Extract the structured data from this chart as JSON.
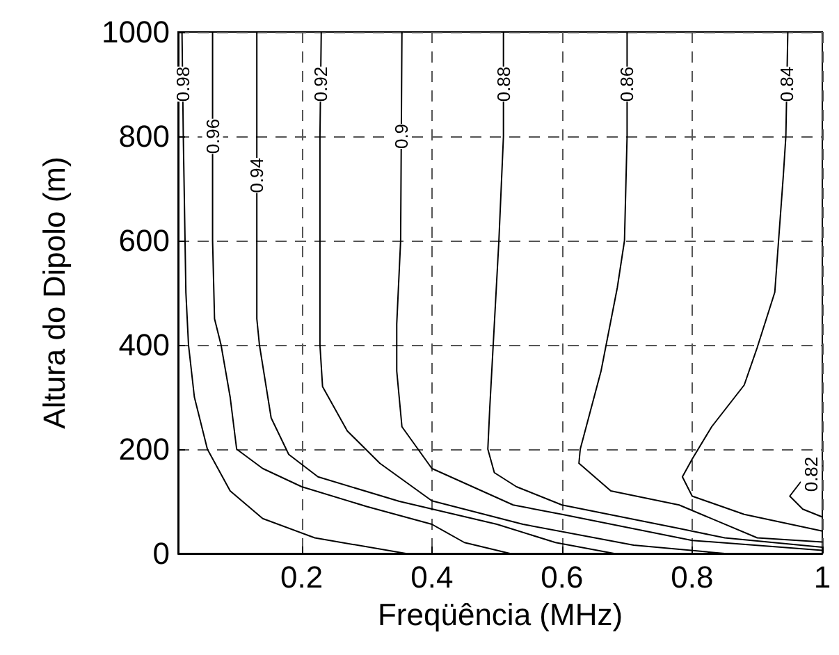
{
  "chart_data": {
    "type": "line",
    "xlabel": "Freqüência (MHz)",
    "ylabel": "Altura do Dipolo (m)",
    "xlim": [
      0.01,
      1
    ],
    "ylim": [
      0,
      1000
    ],
    "xticks": [
      0.2,
      0.4,
      0.6,
      0.8,
      1
    ],
    "yticks": [
      0,
      200,
      400,
      600,
      800,
      1000
    ],
    "grid": true,
    "legend": false,
    "marker": "none",
    "line_style": "solid",
    "series": [
      {
        "name": "0.98",
        "color": "#000000",
        "x": [
          0.016,
          0.018,
          0.022,
          0.026,
          0.035,
          0.055,
          0.09,
          0.14,
          0.22,
          0.36
        ],
        "values": [
          1000,
          800,
          500,
          400,
          300,
          200,
          120,
          67,
          30,
          0
        ]
      },
      {
        "name": "0.96",
        "color": "#000000",
        "x": [
          0.063,
          0.063,
          0.066,
          0.076,
          0.09,
          0.1,
          0.14,
          0.2,
          0.3,
          0.4,
          0.45,
          0.52
        ],
        "values": [
          1000,
          600,
          450,
          400,
          300,
          200,
          163,
          128,
          90,
          56,
          21,
          0
        ]
      },
      {
        "name": "0.94",
        "color": "#000000",
        "x": [
          0.131,
          0.131,
          0.135,
          0.153,
          0.18,
          0.225,
          0.35,
          0.5,
          0.59,
          0.68
        ],
        "values": [
          1000,
          450,
          400,
          260,
          190,
          147,
          100,
          56,
          21,
          0
        ]
      },
      {
        "name": "0.92",
        "color": "#000000",
        "x": [
          0.23,
          0.228,
          0.228,
          0.232,
          0.27,
          0.32,
          0.4,
          0.54,
          0.71,
          0.85
        ],
        "values": [
          1000,
          800,
          400,
          320,
          235,
          173,
          101,
          56,
          16,
          0
        ]
      },
      {
        "name": "0.9",
        "color": "#000000",
        "x": [
          0.354,
          0.352,
          0.346,
          0.346,
          0.354,
          0.4,
          0.525,
          0.6,
          0.8,
          1
        ],
        "values": [
          1000,
          600,
          440,
          350,
          243,
          163,
          93,
          75,
          25,
          6
        ]
      },
      {
        "name": "0.88",
        "color": "#000000",
        "x": [
          0.51,
          0.51,
          0.503,
          0.496,
          0.489,
          0.486,
          0.496,
          0.53,
          0.6,
          0.78,
          0.85,
          1
        ],
        "values": [
          1000,
          800,
          600,
          440,
          280,
          200,
          155,
          128,
          93,
          48,
          30,
          12
        ]
      },
      {
        "name": "0.86",
        "color": "#000000",
        "x": [
          0.7,
          0.7,
          0.696,
          0.685,
          0.66,
          0.628,
          0.626,
          0.675,
          0.78,
          0.9,
          1
        ],
        "values": [
          1000,
          800,
          600,
          510,
          350,
          200,
          173,
          120,
          93,
          30,
          22
        ]
      },
      {
        "name": "0.84",
        "color": "#000000",
        "x": [
          0.947,
          0.944,
          0.94,
          0.927,
          0.9,
          0.88,
          0.83,
          0.8,
          0.785,
          0.8,
          0.88,
          1
        ],
        "values": [
          1000,
          800,
          723,
          501,
          395,
          323,
          243,
          181,
          147,
          110,
          75,
          43
        ]
      },
      {
        "name": "0.82",
        "color": "#000000",
        "x": [
          1,
          0.966,
          0.95,
          0.97,
          1
        ],
        "values": [
          168,
          136,
          110,
          85,
          70
        ]
      }
    ]
  }
}
